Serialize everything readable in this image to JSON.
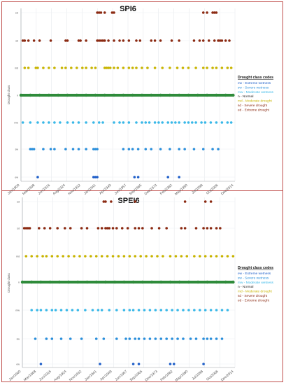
{
  "legend": {
    "title": "Drought class codes",
    "items": [
      {
        "label": "ew - Extreme wetness",
        "color": "#1f5fc9"
      },
      {
        "label": "sw - Severe wetness",
        "color": "#2b8fdb"
      },
      {
        "label": "mw - Moderate wetness",
        "color": "#39b8e8"
      },
      {
        "label": "n - Normal",
        "color": "#222222"
      },
      {
        "label": "md - Moderate drought",
        "color": "#c8b400"
      },
      {
        "label": "sd - Severe drought",
        "color": "#8b2a12"
      },
      {
        "label": "ed - Extreme drought",
        "color": "#8b2a12"
      }
    ]
  },
  "colors": {
    "ed": "#8b2a12",
    "sd": "#8b2a12",
    "md": "#c8b400",
    "n": "#2e8b3a",
    "mw": "#39b8e8",
    "sw": "#2b8fdb",
    "ew": "#1f5fc9",
    "frame": "#c0504d"
  },
  "chart_data": [
    {
      "type": "scatter",
      "title": "SPI6",
      "ylabel": "Drought class",
      "categories": [
        "ed",
        "sd",
        "md",
        "n",
        "mw",
        "sw",
        "ew"
      ],
      "x_ticks": [
        "Jan/1900",
        "Mar/1908",
        "Jun/1916",
        "Aug/1924",
        "Nov/1932",
        "Jan/1941",
        "Apr/1949",
        "Jun/1957",
        "Sep/1965",
        "Dec/1973",
        "Feb/1982",
        "May/1990",
        "Jul/1998",
        "Oct/2006",
        "Dec/2014"
      ],
      "xlim": [
        1900,
        2015
      ],
      "grid": true,
      "legend_position": "right",
      "series": [
        {
          "class": "ed",
          "x": [
            1941,
            1942,
            1943,
            1945,
            1949,
            1950,
            1998,
            2000,
            2003,
            2004,
            2005
          ]
        },
        {
          "class": "sd",
          "x": [
            1901,
            1902,
            1904,
            1907,
            1910,
            1916,
            1924,
            1925,
            1931,
            1932,
            1935,
            1941,
            1942,
            1943,
            1944,
            1945,
            1947,
            1950,
            1953,
            1955,
            1958,
            1962,
            1964,
            1970,
            1972,
            1975,
            1981,
            1985,
            1993,
            1996,
            1998,
            2001,
            2004,
            2006,
            2007,
            2008,
            2010,
            2012
          ]
        },
        {
          "class": "md",
          "x": [
            1902,
            1904,
            1908,
            1909,
            1912,
            1915,
            1918,
            1922,
            1924,
            1927,
            1930,
            1933,
            1935,
            1938,
            1940,
            1945,
            1946,
            1947,
            1948,
            1950,
            1952,
            1955,
            1958,
            1960,
            1962,
            1965,
            1968,
            1972,
            1976,
            1980,
            1984,
            1987,
            1990,
            1994,
            1998,
            2000,
            2003,
            2005,
            2008,
            2011,
            2013
          ]
        },
        {
          "class": "n",
          "x": [
            1900,
            1905,
            1910,
            1915,
            1920,
            1925,
            1930,
            1935,
            1940,
            1945,
            1950,
            1955,
            1960,
            1965,
            1970,
            1975,
            1980,
            1985,
            1990,
            1995,
            2000,
            2005,
            2010,
            2014
          ]
        },
        {
          "class": "mw",
          "x": [
            1901,
            1905,
            1909,
            1912,
            1915,
            1918,
            1921,
            1925,
            1928,
            1931,
            1935,
            1939,
            1942,
            1944,
            1950,
            1953,
            1955,
            1958,
            1962,
            1965,
            1967,
            1969,
            1972,
            1974,
            1976,
            1979,
            1981,
            1983,
            1985,
            1988,
            1990,
            1992,
            1994,
            1997,
            1999,
            2002,
            2005,
            2008,
            2011,
            2013
          ]
        },
        {
          "class": "sw",
          "x": [
            1905,
            1906,
            1907,
            1912,
            1916,
            1918,
            1924,
            1928,
            1931,
            1935,
            1939,
            1940,
            1941,
            1955,
            1958,
            1960,
            1963,
            1967,
            1970,
            1975,
            1980,
            1985,
            1988,
            1993,
            1998,
            2003,
            2006
          ]
        },
        {
          "class": "ew",
          "x": [
            1909,
            1939,
            1940,
            1941,
            1961,
            1963,
            1979,
            1985
          ]
        }
      ]
    },
    {
      "type": "scatter",
      "title": "SPEI6",
      "ylabel": "Drought class",
      "categories": [
        "ed",
        "sd",
        "md",
        "n",
        "mw",
        "sw",
        "ew"
      ],
      "x_ticks": [
        "Jan/1900",
        "Mar/1908",
        "Jun/1916",
        "Aug/1924",
        "Nov/1932",
        "Jan/1941",
        "Apr/1949",
        "Jun/1957",
        "Sep/1965",
        "Dec/1973",
        "Feb/1982",
        "May/1990",
        "Jul/1998",
        "Oct/2006",
        "Dec/2014"
      ],
      "xlim": [
        1900,
        2015
      ],
      "grid": true,
      "legend_position": "right",
      "series": [
        {
          "class": "ed",
          "x": [
            1944,
            1945,
            1948,
            1961,
            1988,
            1999,
            2002
          ]
        },
        {
          "class": "sd",
          "x": [
            1901,
            1902,
            1903,
            1904,
            1909,
            1912,
            1915,
            1919,
            1923,
            1926,
            1932,
            1935,
            1941,
            1943,
            1945,
            1946,
            1947,
            1949,
            1951,
            1954,
            1957,
            1961,
            1963,
            1965,
            1970,
            1974,
            1978,
            1986,
            1988,
            1994,
            1998,
            2000,
            2002,
            2005,
            2007
          ]
        },
        {
          "class": "md",
          "x": [
            1902,
            1905,
            1908,
            1911,
            1913,
            1916,
            1919,
            1922,
            1925,
            1928,
            1931,
            1934,
            1937,
            1940,
            1943,
            1946,
            1949,
            1952,
            1955,
            1958,
            1961,
            1964,
            1967,
            1970,
            1973,
            1976,
            1980,
            1983,
            1986,
            1989,
            1993,
            1996,
            1999,
            2002,
            2005,
            2008,
            2011,
            2014
          ]
        },
        {
          "class": "n",
          "x": [
            1900,
            1905,
            1910,
            1915,
            1920,
            1925,
            1930,
            1935,
            1940,
            1945,
            1950,
            1955,
            1960,
            1965,
            1970,
            1975,
            1980,
            1985,
            1990,
            1995,
            2000,
            2005,
            2010,
            2014
          ]
        },
        {
          "class": "mw",
          "x": [
            1905,
            1908,
            1910,
            1913,
            1916,
            1918,
            1921,
            1924,
            1927,
            1930,
            1934,
            1938,
            1941,
            1943,
            1947,
            1951,
            1955,
            1958,
            1960,
            1963,
            1966,
            1969,
            1972,
            1975,
            1978,
            1981,
            1984,
            1987,
            1990,
            1993,
            1996,
            1999,
            2002,
            2005,
            2008,
            2011
          ]
        },
        {
          "class": "sw",
          "x": [
            1907,
            1913,
            1916,
            1921,
            1926,
            1932,
            1940,
            1944,
            1951,
            1956,
            1958,
            1961,
            1963,
            1966,
            1969,
            1972,
            1975,
            1978,
            1981,
            1984,
            1987,
            1991,
            1994,
            1998,
            2000,
            2002,
            2005,
            2008
          ]
        },
        {
          "class": "ew",
          "x": [
            1910,
            1942,
            1960,
            1963,
            1980,
            1982,
            1998
          ]
        }
      ]
    }
  ]
}
